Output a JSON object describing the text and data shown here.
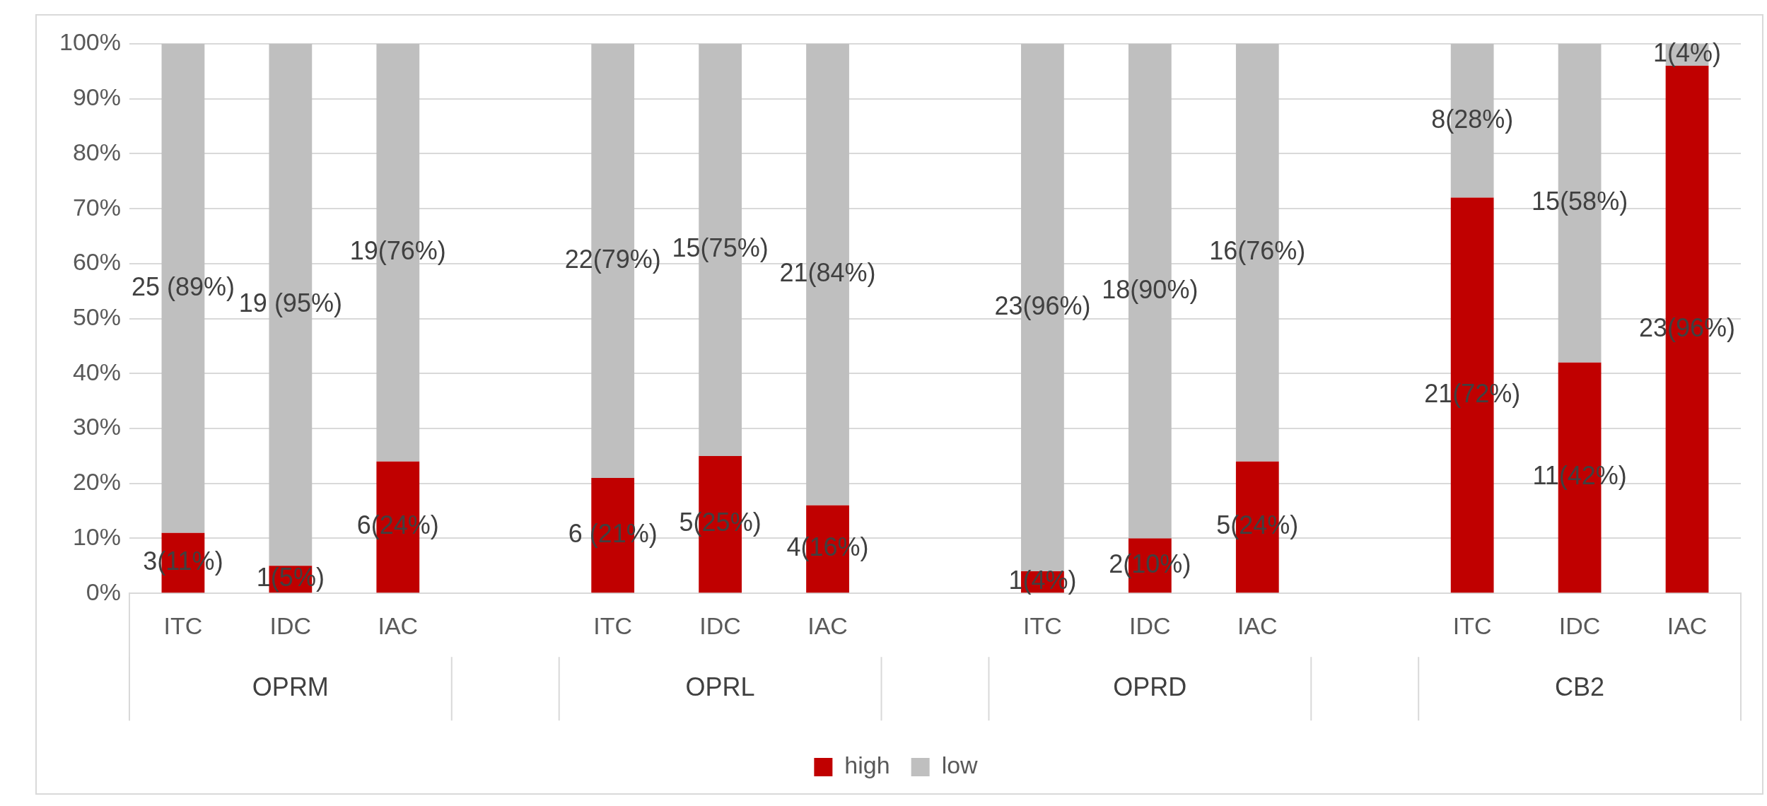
{
  "chart_data": {
    "type": "bar",
    "stacked": true,
    "categories": [
      "ITC",
      "IDC",
      "IAC",
      null,
      "ITC",
      "IDC",
      "IAC",
      null,
      "ITC",
      "IDC",
      "IAC",
      null,
      "ITC",
      "IDC",
      "IAC"
    ],
    "series": [
      {
        "name": "high",
        "color": "#c00000",
        "values": [
          11,
          5,
          24,
          null,
          21,
          25,
          16,
          null,
          4,
          10,
          24,
          null,
          72,
          42,
          96
        ],
        "value_labels": [
          "3(11%)",
          "1(5%)",
          "6(24%)",
          null,
          "6 (21%)",
          "5(25%)",
          "4(16%)",
          null,
          "1(4%)",
          "2(10%)",
          "5(24%)",
          null,
          "21(72%)",
          "11(42%)",
          "23(96%)"
        ]
      },
      {
        "name": "low",
        "color": "#bfbfbf",
        "values": [
          89,
          95,
          76,
          null,
          79,
          75,
          84,
          null,
          96,
          90,
          76,
          null,
          28,
          58,
          4
        ],
        "value_labels": [
          "25 (89%)",
          "19 (95%)",
          "19(76%)",
          null,
          "22(79%)",
          "15(75%)",
          "21(84%)",
          null,
          "23(96%)",
          "18(90%)",
          "16(76%)",
          null,
          "8(28%)",
          "15(58%)",
          "1(4%)"
        ]
      }
    ],
    "annotations": [
      "OPRM",
      "OPRL",
      "OPRD",
      "CB2"
    ],
    "ylim": [
      0,
      100
    ],
    "yticks": [
      {
        "value": 0,
        "label": "0%"
      },
      {
        "value": 10,
        "label": "10%"
      },
      {
        "value": 20,
        "label": "20%"
      },
      {
        "value": 30,
        "label": "30%"
      },
      {
        "value": 40,
        "label": "40%"
      },
      {
        "value": 50,
        "label": "50%"
      },
      {
        "value": 60,
        "label": "60%"
      },
      {
        "value": 70,
        "label": "70%"
      },
      {
        "value": 80,
        "label": "80%"
      },
      {
        "value": 90,
        "label": "90%"
      },
      {
        "value": 100,
        "label": "100%"
      }
    ],
    "grid": "y",
    "legend": "bottom"
  }
}
